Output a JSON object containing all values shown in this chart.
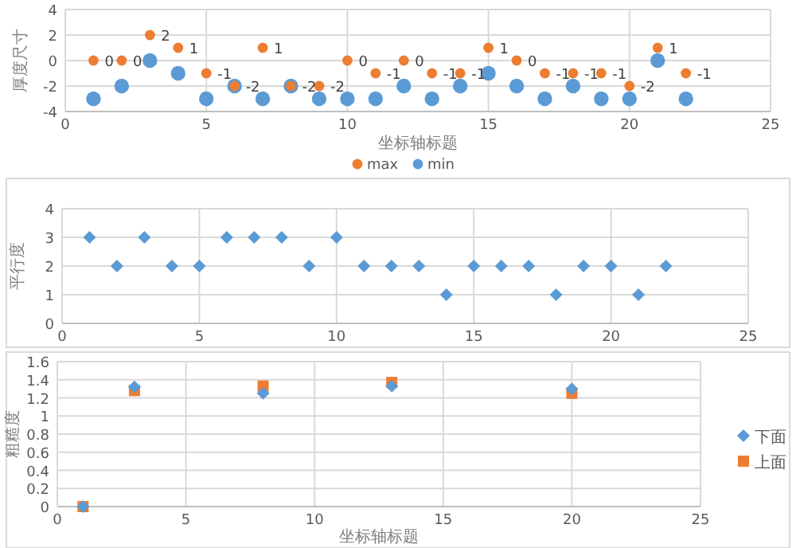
{
  "chart_data": [
    {
      "type": "scatter",
      "xlabel": "坐标轴标题",
      "ylabel": "厚度尺寸",
      "x": [
        1,
        2,
        3,
        4,
        5,
        6,
        7,
        8,
        9,
        10,
        11,
        12,
        13,
        14,
        15,
        16,
        17,
        18,
        19,
        20,
        21,
        22
      ],
      "xlim": [
        0,
        25
      ],
      "xticks": [
        0,
        5,
        10,
        15,
        20,
        25
      ],
      "ylim": [
        -4,
        4
      ],
      "yticks": [
        -4,
        -2,
        0,
        2,
        4
      ],
      "grid": true,
      "legend": "bottom",
      "marker": "circle",
      "series": [
        {
          "name": "max",
          "color": "#ed7d31",
          "values": [
            0,
            0,
            2,
            1,
            -1,
            -2,
            1,
            -2,
            -2,
            0,
            -1,
            0,
            -1,
            -1,
            1,
            0,
            -1,
            -1,
            -1,
            -2,
            1,
            -1
          ],
          "value_labels": [
            "0",
            "0",
            "2",
            "1",
            "-1",
            "-2",
            "1",
            "-2",
            "-2",
            "0",
            "-1",
            "0",
            "-1",
            "-1",
            "1",
            "0",
            "-1",
            "-1",
            "-1",
            "-2",
            "1",
            "-1"
          ]
        },
        {
          "name": "min",
          "color": "#5b9bd5",
          "values": [
            -3,
            -2,
            0,
            -1,
            -3,
            -2,
            -3,
            -2,
            -3,
            -3,
            -3,
            -2,
            -3,
            -2,
            -1,
            -2,
            -3,
            -2,
            -3,
            -3,
            0,
            -3
          ]
        }
      ]
    },
    {
      "type": "scatter",
      "ylabel": "平行度",
      "x": [
        1,
        2,
        3,
        4,
        5,
        6,
        7,
        8,
        9,
        10,
        11,
        12,
        13,
        14,
        15,
        16,
        17,
        18,
        19,
        20,
        21,
        22
      ],
      "xlim": [
        0,
        25
      ],
      "xticks": [
        0,
        5,
        10,
        15,
        20,
        25
      ],
      "ylim": [
        0,
        4
      ],
      "yticks": [
        0,
        1,
        2,
        3,
        4
      ],
      "grid": true,
      "marker": "diamond",
      "series": [
        {
          "color": "#5b9bd5",
          "values": [
            3,
            2,
            3,
            2,
            2,
            3,
            3,
            3,
            2,
            3,
            2,
            2,
            2,
            1,
            2,
            2,
            2,
            1,
            2,
            2,
            1,
            2
          ]
        }
      ]
    },
    {
      "type": "scatter",
      "xlabel": "坐标轴标题",
      "ylabel": "粗糙度",
      "x": [
        1,
        3,
        8,
        13,
        20
      ],
      "xlim": [
        0,
        25
      ],
      "xticks": [
        0,
        5,
        10,
        15,
        20,
        25
      ],
      "ylim": [
        0,
        1.6
      ],
      "yticks": [
        0,
        0.2,
        0.4,
        0.6,
        0.8,
        1,
        1.2,
        1.4,
        1.6
      ],
      "grid": true,
      "legend": "right",
      "series": [
        {
          "name": "下面",
          "color": "#5b9bd5",
          "marker": "diamond",
          "values": [
            0,
            1.32,
            1.25,
            1.33,
            1.3
          ]
        },
        {
          "name": "上面",
          "color": "#ed7d31",
          "marker": "square",
          "values": [
            0,
            1.28,
            1.33,
            1.37,
            1.25
          ]
        }
      ]
    }
  ]
}
